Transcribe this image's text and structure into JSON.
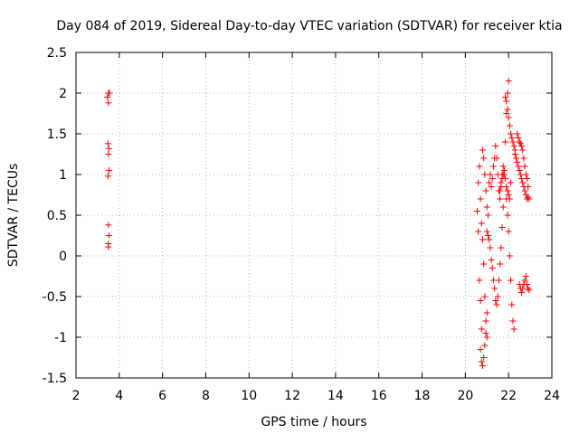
{
  "chart_data": {
    "type": "scatter",
    "title": "Day 084 of 2019, Sidereal Day-to-day VTEC variation (SDTVAR) for receiver ktia",
    "xlabel": "GPS time / hours",
    "ylabel": "SDTVAR / TECUs",
    "xlim": [
      2,
      24
    ],
    "ylim": [
      -1.5,
      2.5
    ],
    "xticks": [
      2,
      4,
      6,
      8,
      10,
      12,
      14,
      16,
      18,
      20,
      22,
      24
    ],
    "yticks": [
      -1.5,
      -1,
      -0.5,
      0,
      0.5,
      1,
      1.5,
      2,
      2.5
    ],
    "xtick_labels": [
      "2",
      "4",
      "6",
      "8",
      "10",
      "12",
      "14",
      "16",
      "18",
      "20",
      "22",
      "24"
    ],
    "ytick_labels": [
      "-1.5",
      "-1",
      "-0.5",
      "0",
      "0.5",
      "1",
      "1.5",
      "2",
      "2.5"
    ],
    "grid": true,
    "marker": "+",
    "color": "#ff0000",
    "series": [
      {
        "name": "SDTVAR",
        "x": [
          3.45,
          3.5,
          3.55,
          3.5,
          3.48,
          3.52,
          3.5,
          3.53,
          3.48,
          3.5,
          3.52,
          3.5,
          3.49,
          20.55,
          20.6,
          20.65,
          20.7,
          20.75,
          20.6,
          20.65,
          20.7,
          20.75,
          20.8,
          20.85,
          20.9,
          20.95,
          21.0,
          20.7,
          20.75,
          20.8,
          20.85,
          20.9,
          20.95,
          21.0,
          20.8,
          20.85,
          20.9,
          20.95,
          21.0,
          21.05,
          21.1,
          21.15,
          21.2,
          21.25,
          21.3,
          21.35,
          21.4,
          21.45,
          21.5,
          21.55,
          21.6,
          21.65,
          21.7,
          21.75,
          21.0,
          21.05,
          21.1,
          21.15,
          21.2,
          21.25,
          21.3,
          21.35,
          21.4,
          21.45,
          21.5,
          21.55,
          21.6,
          21.65,
          21.7,
          21.75,
          21.8,
          21.85,
          21.9,
          21.95,
          22.0,
          21.85,
          21.9,
          21.95,
          22.0,
          22.05,
          22.1,
          22.15,
          22.2,
          22.25,
          22.3,
          21.9,
          21.95,
          22.0,
          22.05,
          22.1,
          22.15,
          22.2,
          22.25,
          22.3,
          22.35,
          22.4,
          22.45,
          22.5,
          22.55,
          22.6,
          22.65,
          22.7,
          22.75,
          22.8,
          22.85,
          22.9,
          22.95,
          22.4,
          22.45,
          22.5,
          22.55,
          22.6,
          22.65,
          22.7,
          22.75,
          22.8,
          22.85,
          22.9,
          22.5,
          22.55,
          22.6,
          22.65,
          22.7,
          22.75,
          22.8,
          22.85,
          22.9,
          22.95,
          21.6,
          21.65,
          21.7,
          21.75,
          21.8,
          21.85,
          21.9,
          21.95,
          22.0,
          22.05,
          22.1
        ],
        "y": [
          1.95,
          2.0,
          2.0,
          1.88,
          1.38,
          1.32,
          1.25,
          1.05,
          0.98,
          0.38,
          0.25,
          0.15,
          0.11,
          0.55,
          0.3,
          -0.3,
          -0.55,
          -0.9,
          0.9,
          1.1,
          0.7,
          0.4,
          0.2,
          -0.1,
          -0.5,
          -0.8,
          -1.0,
          -1.15,
          -1.3,
          -1.35,
          -1.25,
          -1.1,
          -0.95,
          -0.7,
          1.3,
          1.2,
          1.0,
          0.8,
          0.6,
          0.5,
          0.9,
          1.0,
          0.85,
          0.95,
          1.1,
          1.2,
          1.35,
          1.2,
          1.0,
          0.8,
          0.7,
          0.85,
          1.0,
          1.1,
          0.3,
          0.25,
          0.2,
          0.1,
          -0.05,
          -0.15,
          -0.3,
          -0.4,
          -0.55,
          -0.6,
          -0.5,
          -0.3,
          -0.1,
          0.1,
          0.35,
          0.6,
          1.0,
          1.4,
          1.75,
          2.0,
          2.15,
          1.95,
          1.9,
          1.8,
          1.7,
          1.6,
          1.5,
          1.45,
          1.4,
          1.35,
          1.3,
          0.7,
          0.5,
          0.3,
          0.0,
          -0.3,
          -0.6,
          -0.8,
          -0.9,
          1.25,
          1.2,
          1.15,
          1.1,
          1.05,
          1.0,
          0.95,
          0.9,
          0.85,
          0.8,
          0.75,
          0.7,
          0.72,
          0.7,
          1.5,
          1.45,
          1.4,
          1.38,
          1.35,
          1.3,
          1.2,
          1.1,
          1.0,
          0.95,
          0.85,
          -0.35,
          -0.4,
          -0.45,
          -0.4,
          -0.35,
          -0.3,
          -0.25,
          -0.35,
          -0.4,
          -0.42,
          0.8,
          0.9,
          0.95,
          1.0,
          1.05,
          0.95,
          0.85,
          0.8,
          0.75,
          0.7,
          0.9
        ]
      }
    ]
  }
}
